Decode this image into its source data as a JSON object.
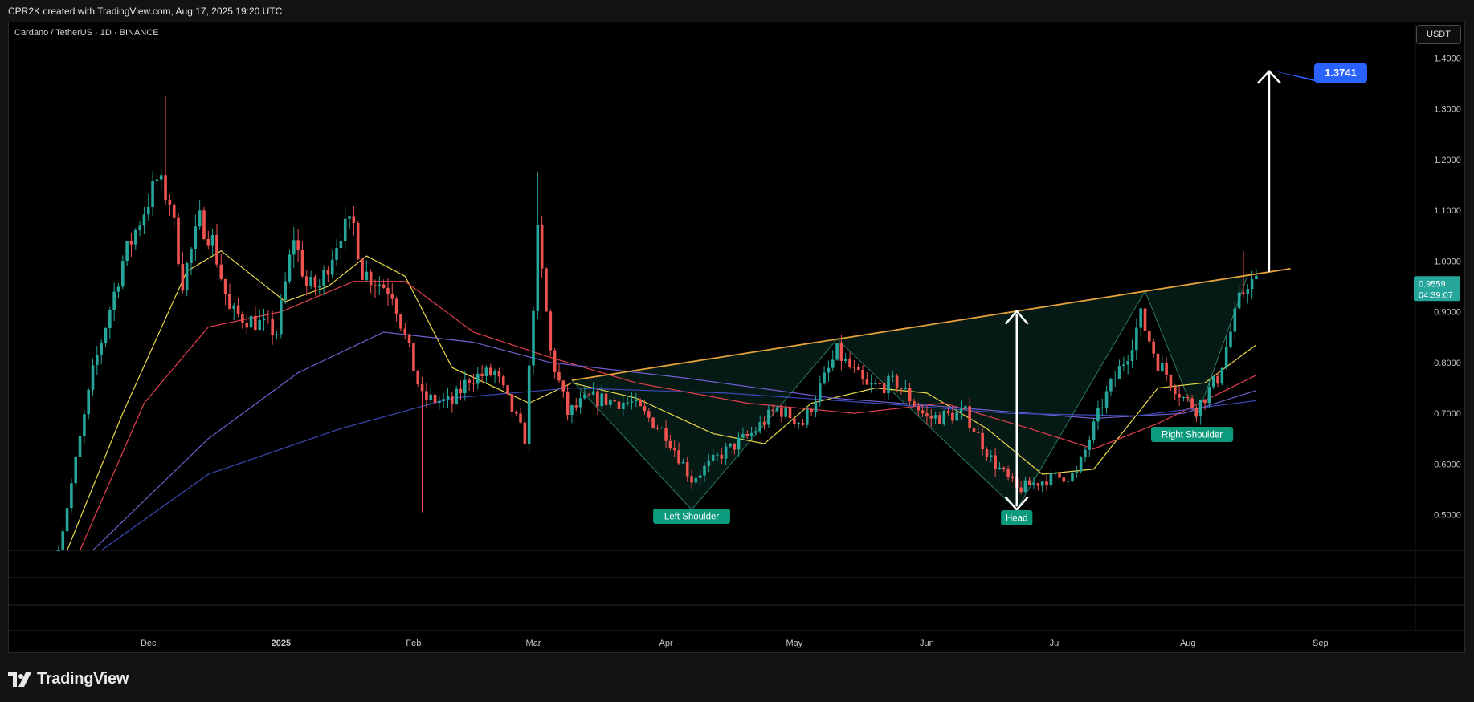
{
  "header": {
    "attribution": "CPR2K created with TradingView.com, Aug 17, 2025 19:20 UTC"
  },
  "chart_header": {
    "symbol": "Cardano / TetherUS · 1D · BINANCE",
    "currency_button": "USDT"
  },
  "footer": {
    "brand": "TradingView"
  },
  "colors": {
    "up": "#26a69a",
    "down": "#ef5350",
    "neckline": "#e5a33a",
    "ma_fast": "#e8d84a",
    "ma_mid": "#e0404e",
    "ma_slow": "#7060d0",
    "ma_long": "#3a4ab8",
    "badge": "#0b9b7c",
    "target": "#2962ff",
    "pattern_fill": "#0e3a2e"
  },
  "chart_data": {
    "type": "candlestick",
    "title": "Cardano / TetherUS · 1D · BINANCE",
    "ylim": [
      0.43,
      1.47
    ],
    "y_ticks": [
      0.5,
      0.6,
      0.7,
      0.8,
      0.9,
      1.0,
      1.1,
      1.2,
      1.3,
      1.4
    ],
    "y_tick_labels": [
      "0.5000",
      "0.6000",
      "0.7000",
      "0.8000",
      "0.9000",
      "1.0000",
      "1.1000",
      "1.2000",
      "1.3000",
      "1.4000"
    ],
    "x_labels": [
      "Dec",
      "2025",
      "Feb",
      "Mar",
      "Apr",
      "May",
      "Jun",
      "Jul",
      "Aug",
      "Sep"
    ],
    "current_price": "0.9559",
    "countdown": "04:39:07",
    "target_label": "1.3741",
    "target_value": 1.3741,
    "pattern": "Inverse Head and Shoulders",
    "annotations": [
      {
        "label": "Left Shoulder",
        "date": "2025-04-07",
        "price": 0.51
      },
      {
        "label": "Head",
        "date": "2025-06-22",
        "price": 0.51
      },
      {
        "label": "Right Shoulder",
        "date": "2025-08-02",
        "price": 0.69
      }
    ],
    "neckline": [
      {
        "date": "2025-03-10",
        "price": 0.765
      },
      {
        "date": "2025-08-25",
        "price": 0.985
      }
    ],
    "price_path": [
      [
        "2024-11-10",
        0.43
      ],
      [
        "2024-11-18",
        0.78
      ],
      [
        "2024-11-25",
        1.0
      ],
      [
        "2024-12-03",
        1.16
      ],
      [
        "2024-12-06",
        1.12
      ],
      [
        "2024-12-09",
        0.96
      ],
      [
        "2024-12-13",
        1.08
      ],
      [
        "2024-12-16",
        1.04
      ],
      [
        "2024-12-20",
        0.9
      ],
      [
        "2024-12-26",
        0.88
      ],
      [
        "2024-12-31",
        0.86
      ],
      [
        "2025-01-04",
        1.05
      ],
      [
        "2025-01-07",
        0.95
      ],
      [
        "2025-01-10",
        0.95
      ],
      [
        "2025-01-15",
        1.06
      ],
      [
        "2025-01-18",
        1.07
      ],
      [
        "2025-01-20",
        0.98
      ],
      [
        "2025-01-27",
        0.94
      ],
      [
        "2025-02-03",
        0.73
      ],
      [
        "2025-02-10",
        0.72
      ],
      [
        "2025-02-14",
        0.77
      ],
      [
        "2025-02-20",
        0.78
      ],
      [
        "2025-02-27",
        0.65
      ],
      [
        "2025-03-02",
        1.05
      ],
      [
        "2025-03-05",
        0.82
      ],
      [
        "2025-03-09",
        0.7
      ],
      [
        "2025-03-14",
        0.73
      ],
      [
        "2025-03-24",
        0.72
      ],
      [
        "2025-04-01",
        0.66
      ],
      [
        "2025-04-07",
        0.57
      ],
      [
        "2025-04-14",
        0.62
      ],
      [
        "2025-04-21",
        0.66
      ],
      [
        "2025-04-27",
        0.71
      ],
      [
        "2025-05-03",
        0.68
      ],
      [
        "2025-05-11",
        0.82
      ],
      [
        "2025-05-18",
        0.75
      ],
      [
        "2025-05-25",
        0.76
      ],
      [
        "2025-06-01",
        0.69
      ],
      [
        "2025-06-10",
        0.7
      ],
      [
        "2025-06-16",
        0.61
      ],
      [
        "2025-06-22",
        0.55
      ],
      [
        "2025-06-29",
        0.57
      ],
      [
        "2025-07-06",
        0.58
      ],
      [
        "2025-07-12",
        0.72
      ],
      [
        "2025-07-18",
        0.82
      ],
      [
        "2025-07-21",
        0.89
      ],
      [
        "2025-07-25",
        0.8
      ],
      [
        "2025-07-31",
        0.73
      ],
      [
        "2025-08-03",
        0.71
      ],
      [
        "2025-08-08",
        0.77
      ],
      [
        "2025-08-13",
        0.92
      ],
      [
        "2025-08-15",
        0.96
      ],
      [
        "2025-08-17",
        0.9559
      ]
    ],
    "moving_averages": [
      {
        "color_key": "ma_fast",
        "path": [
          [
            "2024-11-12",
            0.43
          ],
          [
            "2024-11-25",
            0.7
          ],
          [
            "2024-12-10",
            0.98
          ],
          [
            "2024-12-18",
            1.02
          ],
          [
            "2025-01-02",
            0.92
          ],
          [
            "2025-01-12",
            0.95
          ],
          [
            "2025-01-21",
            1.01
          ],
          [
            "2025-01-30",
            0.97
          ],
          [
            "2025-02-10",
            0.79
          ],
          [
            "2025-02-28",
            0.72
          ],
          [
            "2025-03-10",
            0.76
          ],
          [
            "2025-03-25",
            0.73
          ],
          [
            "2025-04-12",
            0.66
          ],
          [
            "2025-04-24",
            0.64
          ],
          [
            "2025-05-05",
            0.72
          ],
          [
            "2025-05-20",
            0.75
          ],
          [
            "2025-06-01",
            0.74
          ],
          [
            "2025-06-15",
            0.67
          ],
          [
            "2025-06-28",
            0.58
          ],
          [
            "2025-07-10",
            0.59
          ],
          [
            "2025-07-25",
            0.75
          ],
          [
            "2025-08-05",
            0.76
          ],
          [
            "2025-08-17",
            0.835
          ]
        ]
      },
      {
        "color_key": "ma_mid",
        "path": [
          [
            "2024-11-15",
            0.43
          ],
          [
            "2024-11-30",
            0.72
          ],
          [
            "2024-12-15",
            0.87
          ],
          [
            "2025-01-01",
            0.9
          ],
          [
            "2025-01-18",
            0.96
          ],
          [
            "2025-01-30",
            0.96
          ],
          [
            "2025-02-15",
            0.86
          ],
          [
            "2025-03-05",
            0.81
          ],
          [
            "2025-03-25",
            0.76
          ],
          [
            "2025-04-20",
            0.72
          ],
          [
            "2025-05-15",
            0.7
          ],
          [
            "2025-06-05",
            0.72
          ],
          [
            "2025-06-25",
            0.67
          ],
          [
            "2025-07-10",
            0.63
          ],
          [
            "2025-07-25",
            0.68
          ],
          [
            "2025-08-17",
            0.775
          ]
        ]
      },
      {
        "color_key": "ma_slow",
        "path": [
          [
            "2024-11-18",
            0.43
          ],
          [
            "2024-12-15",
            0.65
          ],
          [
            "2025-01-05",
            0.78
          ],
          [
            "2025-01-25",
            0.86
          ],
          [
            "2025-02-15",
            0.84
          ],
          [
            "2025-03-05",
            0.8
          ],
          [
            "2025-04-05",
            0.77
          ],
          [
            "2025-05-10",
            0.73
          ],
          [
            "2025-06-10",
            0.71
          ],
          [
            "2025-07-10",
            0.69
          ],
          [
            "2025-07-31",
            0.7
          ],
          [
            "2025-08-17",
            0.745
          ]
        ]
      },
      {
        "color_key": "ma_long",
        "path": [
          [
            "2024-11-20",
            0.43
          ],
          [
            "2024-12-15",
            0.58
          ],
          [
            "2025-01-15",
            0.67
          ],
          [
            "2025-02-10",
            0.73
          ],
          [
            "2025-03-10",
            0.75
          ],
          [
            "2025-04-15",
            0.74
          ],
          [
            "2025-05-20",
            0.72
          ],
          [
            "2025-06-20",
            0.7
          ],
          [
            "2025-07-20",
            0.695
          ],
          [
            "2025-08-17",
            0.725
          ]
        ]
      }
    ]
  }
}
